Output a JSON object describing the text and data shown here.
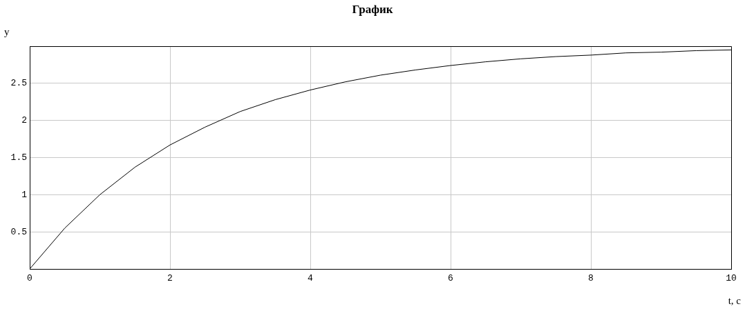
{
  "chart_data": {
    "type": "line",
    "title": "График",
    "xlabel": "t, c",
    "ylabel": "y",
    "x": [
      0,
      0.5,
      1,
      1.5,
      2,
      2.5,
      3,
      3.5,
      4,
      4.5,
      5,
      5.5,
      6,
      6.5,
      7,
      7.5,
      8,
      8.5,
      9,
      9.5,
      10
    ],
    "series": [
      {
        "color": "#000000",
        "values": [
          0,
          0.55,
          1.0,
          1.37,
          1.67,
          1.91,
          2.12,
          2.28,
          2.41,
          2.52,
          2.61,
          2.68,
          2.74,
          2.79,
          2.83,
          2.86,
          2.88,
          2.91,
          2.92,
          2.94,
          2.95
        ]
      }
    ],
    "xlim": [
      0,
      10
    ],
    "xticks": [
      0,
      2,
      4,
      6,
      8,
      10
    ],
    "ylim": [
      0,
      3
    ],
    "yticks": [
      0.5,
      1,
      1.5,
      2,
      2.5
    ],
    "grid": true,
    "marker": "none",
    "line_style": "solid"
  }
}
